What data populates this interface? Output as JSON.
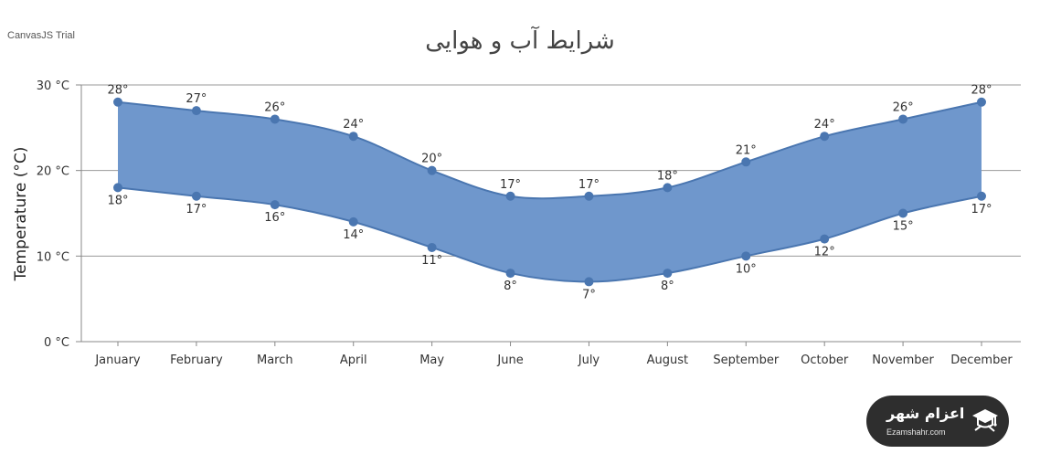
{
  "watermark_top_left": "CanvasJS Trial",
  "brand": {
    "name": "اعزام شهر",
    "domain": "Ezamshahr.com"
  },
  "colors": {
    "area_fill": "#6f97cc",
    "line": "#4a76b0",
    "marker": "#4a76b0",
    "gridline": "#9a9a9a",
    "axis": "#888888",
    "text": "#333333"
  },
  "chart_data": {
    "type": "area",
    "title": "شرایط آب و هوایی",
    "ylabel": "Temperature (°C)",
    "xlabel": "",
    "ylim": [
      0,
      30
    ],
    "yticks": [
      0,
      10,
      20,
      30
    ],
    "ytick_labels": [
      "0 °C",
      "10 °C",
      "20 °C",
      "30 °C"
    ],
    "grid": true,
    "categories": [
      "January",
      "February",
      "March",
      "April",
      "May",
      "June",
      "July",
      "August",
      "September",
      "October",
      "November",
      "December"
    ],
    "series": [
      {
        "high": [
          28,
          27,
          26,
          24,
          20,
          17,
          17,
          18,
          21,
          24,
          26,
          28
        ],
        "low": [
          18,
          17,
          16,
          14,
          11,
          8,
          7,
          8,
          10,
          12,
          15,
          17
        ],
        "high_labels": [
          "28°",
          "27°",
          "26°",
          "24°",
          "20°",
          "17°",
          "17°",
          "18°",
          "21°",
          "24°",
          "26°",
          "28°"
        ],
        "low_labels": [
          "18°",
          "17°",
          "16°",
          "14°",
          "11°",
          "8°",
          "7°",
          "8°",
          "10°",
          "12°",
          "15°",
          "17°"
        ]
      }
    ]
  }
}
